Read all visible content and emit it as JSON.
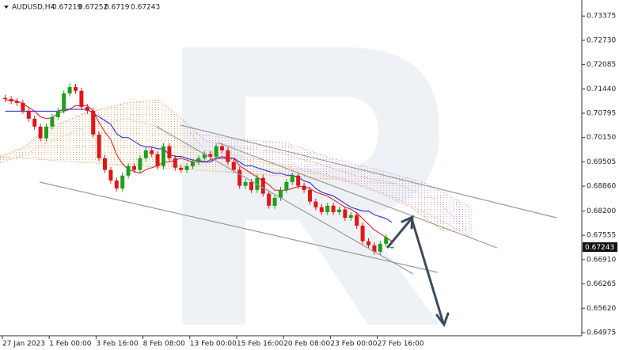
{
  "chart_data": {
    "type": "candlestick",
    "title": "AUDUSD,H4",
    "up_color": "#1f9e1f",
    "down_color": "#e01515",
    "ylim": [
      0.6489,
      0.738
    ],
    "yticks": [
      0.73375,
      {
        "value": 0.7273,
        "label": "0.72730"
      },
      0.72085,
      {
        "value": 0.7144,
        "label": "0.71440"
      },
      0.70795,
      {
        "value": 0.7015,
        "label": "0.70150"
      },
      0.69505,
      {
        "value": 0.6886,
        "label": "0.68860"
      },
      {
        "value": 0.682,
        "label": "0.68200"
      },
      0.67555,
      {
        "value": 0.6691,
        "label": "0.66910"
      },
      0.66265,
      {
        "value": 0.6562,
        "label": "0.65620"
      },
      0.64975
    ],
    "categories": [
      "27 Jan 2023",
      null,
      null,
      null,
      null,
      null,
      null,
      null,
      "1 Feb 00:00",
      null,
      null,
      null,
      null,
      null,
      null,
      null,
      "3 Feb 16:00",
      null,
      null,
      null,
      null,
      null,
      null,
      null,
      "8 Feb 08:00",
      null,
      null,
      null,
      null,
      null,
      null,
      null,
      "13 Feb 00:00",
      null,
      null,
      null,
      null,
      null,
      null,
      null,
      "15 Feb 16:00",
      null,
      null,
      null,
      null,
      null,
      null,
      null,
      "20 Feb 08:00",
      null,
      null,
      null,
      null,
      null,
      null,
      null,
      "23 Feb 00:00",
      null,
      null,
      null,
      null,
      null,
      null,
      null,
      "27 Feb 16:00",
      null,
      null
    ],
    "ohlc": [
      [
        0.712,
        0.7128,
        0.7109,
        0.7117
      ],
      [
        0.7117,
        0.7125,
        0.7103,
        0.7111
      ],
      [
        0.7111,
        0.7119,
        0.7099,
        0.7107
      ],
      [
        0.7107,
        0.7115,
        0.7078,
        0.7086
      ],
      [
        0.7086,
        0.7094,
        0.7057,
        0.7065
      ],
      [
        0.7065,
        0.7073,
        0.7036,
        0.7044
      ],
      [
        0.7044,
        0.7052,
        0.7005,
        0.7013
      ],
      [
        0.7013,
        0.7052,
        0.7005,
        0.7044
      ],
      [
        0.7044,
        0.7077,
        0.7036,
        0.7069
      ],
      [
        0.7069,
        0.7094,
        0.7061,
        0.7086
      ],
      [
        0.7086,
        0.714,
        0.7078,
        0.7132
      ],
      [
        0.7132,
        0.716,
        0.7124,
        0.7149
      ],
      [
        0.7149,
        0.7157,
        0.7131,
        0.7139
      ],
      [
        0.7139,
        0.7147,
        0.7088,
        0.7096
      ],
      [
        0.7096,
        0.7104,
        0.7078,
        0.7086
      ],
      [
        0.7086,
        0.7094,
        0.7015,
        0.7023
      ],
      [
        0.7023,
        0.7031,
        0.6952,
        0.696
      ],
      [
        0.696,
        0.6968,
        0.6921,
        0.6929
      ],
      [
        0.6929,
        0.6937,
        0.6893,
        0.6901
      ],
      [
        0.6901,
        0.6909,
        0.6872,
        0.688
      ],
      [
        0.688,
        0.6922,
        0.6872,
        0.6914
      ],
      [
        0.6914,
        0.6947,
        0.6906,
        0.6939
      ],
      [
        0.6939,
        0.6947,
        0.6921,
        0.6929
      ],
      [
        0.6929,
        0.6968,
        0.6921,
        0.696
      ],
      [
        0.696,
        0.6989,
        0.6952,
        0.6981
      ],
      [
        0.6981,
        0.6989,
        0.6963,
        0.6971
      ],
      [
        0.6971,
        0.6979,
        0.6931,
        0.6939
      ],
      [
        0.6939,
        0.7,
        0.6931,
        0.6992
      ],
      [
        0.6992,
        0.7,
        0.6952,
        0.696
      ],
      [
        0.696,
        0.6968,
        0.6927,
        0.6935
      ],
      [
        0.6935,
        0.6943,
        0.6921,
        0.6929
      ],
      [
        0.6929,
        0.6947,
        0.6921,
        0.6939
      ],
      [
        0.6939,
        0.6958,
        0.6931,
        0.695
      ],
      [
        0.695,
        0.6968,
        0.6942,
        0.696
      ],
      [
        0.696,
        0.6979,
        0.6952,
        0.6971
      ],
      [
        0.6971,
        0.6979,
        0.6956,
        0.6964
      ],
      [
        0.6964,
        0.7,
        0.6956,
        0.6992
      ],
      [
        0.6992,
        0.7,
        0.6973,
        0.6981
      ],
      [
        0.6981,
        0.6989,
        0.6942,
        0.695
      ],
      [
        0.695,
        0.6958,
        0.6921,
        0.6929
      ],
      [
        0.6929,
        0.6937,
        0.6879,
        0.6887
      ],
      [
        0.6887,
        0.6905,
        0.6879,
        0.6897
      ],
      [
        0.6897,
        0.6905,
        0.6868,
        0.6876
      ],
      [
        0.6876,
        0.6916,
        0.6868,
        0.6908
      ],
      [
        0.6908,
        0.6916,
        0.6858,
        0.6866
      ],
      [
        0.6866,
        0.6874,
        0.6826,
        0.6834
      ],
      [
        0.6834,
        0.6863,
        0.6826,
        0.6855
      ],
      [
        0.6855,
        0.6884,
        0.6847,
        0.6876
      ],
      [
        0.6876,
        0.6905,
        0.6868,
        0.6897
      ],
      [
        0.6897,
        0.6922,
        0.6889,
        0.6914
      ],
      [
        0.6914,
        0.6922,
        0.6879,
        0.6887
      ],
      [
        0.6887,
        0.6895,
        0.6868,
        0.6876
      ],
      [
        0.6876,
        0.6884,
        0.6837,
        0.6845
      ],
      [
        0.6845,
        0.6853,
        0.6822,
        0.683
      ],
      [
        0.683,
        0.6838,
        0.6809,
        0.6817
      ],
      [
        0.6817,
        0.6842,
        0.6809,
        0.6834
      ],
      [
        0.6834,
        0.6842,
        0.6809,
        0.6817
      ],
      [
        0.6817,
        0.6832,
        0.6809,
        0.6824
      ],
      [
        0.6824,
        0.6832,
        0.6794,
        0.6802
      ],
      [
        0.6802,
        0.6817,
        0.6794,
        0.6809
      ],
      [
        0.6809,
        0.6817,
        0.6773,
        0.6781
      ],
      [
        0.6781,
        0.6789,
        0.6732,
        0.674
      ],
      [
        0.674,
        0.6748,
        0.6721,
        0.6729
      ],
      [
        0.6729,
        0.6737,
        0.6704,
        0.6712
      ],
      [
        0.6712,
        0.6741,
        0.6704,
        0.6733
      ],
      [
        0.6733,
        0.6758,
        0.6725,
        0.675
      ],
      [
        0.67219,
        0.67252,
        0.6719,
        0.67243
      ]
    ],
    "series": [
      {
        "color": "#e01515",
        "values": [
          0.7115,
          0.7114,
          0.7112,
          0.7105,
          0.7095,
          0.7085,
          0.707,
          0.7065,
          0.7068,
          0.708,
          0.7085,
          0.709,
          0.71,
          0.71,
          0.71,
          0.7085,
          0.7055,
          0.703,
          0.701,
          0.697,
          0.6945,
          0.693,
          0.6925,
          0.692,
          0.693,
          0.6935,
          0.694,
          0.695,
          0.695,
          0.6955,
          0.696,
          0.6955,
          0.695,
          0.695,
          0.695,
          0.6955,
          0.696,
          0.6965,
          0.696,
          0.696,
          0.694,
          0.693,
          0.692,
          0.691,
          0.69,
          0.689,
          0.6875,
          0.6875,
          0.6875,
          0.688,
          0.6885,
          0.6885,
          0.688,
          0.687,
          0.6865,
          0.686,
          0.685,
          0.684,
          0.683,
          0.6825,
          0.6815,
          0.68,
          0.6785,
          0.677,
          0.676,
          0.675,
          0.674
        ]
      },
      {
        "color": "#1a1ae0",
        "values": [
          0.7085,
          0.7085,
          0.7085,
          0.7085,
          0.7085,
          0.7085,
          0.7085,
          0.7085,
          0.7085,
          0.7085,
          0.709,
          0.709,
          0.709,
          0.709,
          0.709,
          0.708,
          0.707,
          0.706,
          0.705,
          0.7025,
          0.7015,
          0.7015,
          0.7005,
          0.6995,
          0.699,
          0.699,
          0.6985,
          0.6985,
          0.697,
          0.6965,
          0.6965,
          0.696,
          0.6955,
          0.6955,
          0.695,
          0.695,
          0.696,
          0.696,
          0.696,
          0.696,
          0.695,
          0.694,
          0.694,
          0.6935,
          0.693,
          0.6925,
          0.692,
          0.692,
          0.6915,
          0.6915,
          0.691,
          0.69,
          0.6895,
          0.688,
          0.687,
          0.6865,
          0.686,
          0.685,
          0.684,
          0.683,
          0.6825,
          0.682,
          0.682,
          0.681,
          0.6805,
          0.68,
          0.679
        ]
      }
    ]
  }
}
